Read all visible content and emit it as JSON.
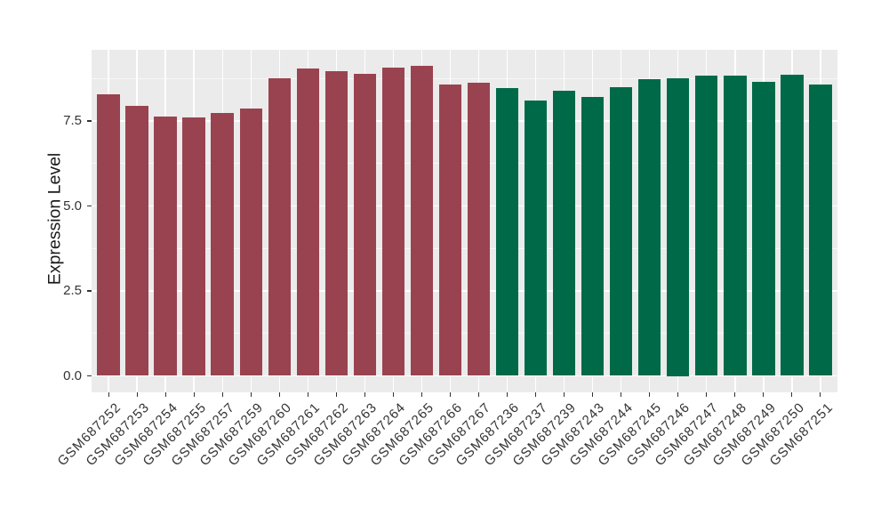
{
  "chart_data": {
    "type": "bar",
    "title": "",
    "xlabel": "",
    "ylabel": "Expression Level",
    "ylim": [
      0,
      9.6
    ],
    "grid": true,
    "legend_position": "none",
    "panel_background": "#EBEBEB",
    "gridline_color": "#FFFFFF",
    "axis_text_color": "#333333",
    "axis_title_color": "#1A1A1A",
    "yticks": [
      {
        "value": 0.0,
        "label": "0.0"
      },
      {
        "value": 2.5,
        "label": "2.5"
      },
      {
        "value": 5.0,
        "label": "5.0"
      },
      {
        "value": 7.5,
        "label": "7.5"
      }
    ],
    "yticks_minor": [
      1.25,
      3.75,
      6.25,
      8.75
    ],
    "group_colors": {
      "group1": "#9A4350",
      "group2": "#006A48"
    },
    "bars": [
      {
        "label": "GSM687252",
        "value": 8.29,
        "group": "group1"
      },
      {
        "label": "GSM687253",
        "value": 7.94,
        "group": "group1"
      },
      {
        "label": "GSM687254",
        "value": 7.62,
        "group": "group1"
      },
      {
        "label": "GSM687255",
        "value": 7.6,
        "group": "group1"
      },
      {
        "label": "GSM687257",
        "value": 7.73,
        "group": "group1"
      },
      {
        "label": "GSM687259",
        "value": 7.87,
        "group": "group1"
      },
      {
        "label": "GSM687260",
        "value": 8.76,
        "group": "group1"
      },
      {
        "label": "GSM687261",
        "value": 9.05,
        "group": "group1"
      },
      {
        "label": "GSM687262",
        "value": 8.97,
        "group": "group1"
      },
      {
        "label": "GSM687263",
        "value": 8.9,
        "group": "group1"
      },
      {
        "label": "GSM687264",
        "value": 9.07,
        "group": "group1"
      },
      {
        "label": "GSM687265",
        "value": 9.12,
        "group": "group1"
      },
      {
        "label": "GSM687266",
        "value": 8.58,
        "group": "group1"
      },
      {
        "label": "GSM687267",
        "value": 8.63,
        "group": "group1"
      },
      {
        "label": "GSM687236",
        "value": 8.47,
        "group": "group2"
      },
      {
        "label": "GSM687237",
        "value": 8.11,
        "group": "group2"
      },
      {
        "label": "GSM687239",
        "value": 8.39,
        "group": "group2"
      },
      {
        "label": "GSM687243",
        "value": 8.2,
        "group": "group2"
      },
      {
        "label": "GSM687244",
        "value": 8.49,
        "group": "group2"
      },
      {
        "label": "GSM687245",
        "value": 8.73,
        "group": "group2"
      },
      {
        "label": "GSM687246",
        "value": 8.75,
        "group": "group2"
      },
      {
        "label": "GSM687247",
        "value": 8.83,
        "group": "group2"
      },
      {
        "label": "GSM687248",
        "value": 8.84,
        "group": "group2"
      },
      {
        "label": "GSM687249",
        "value": 8.65,
        "group": "group2"
      },
      {
        "label": "GSM687250",
        "value": 8.86,
        "group": "group2"
      },
      {
        "label": "GSM687251",
        "value": 8.57,
        "group": "group2"
      }
    ]
  }
}
